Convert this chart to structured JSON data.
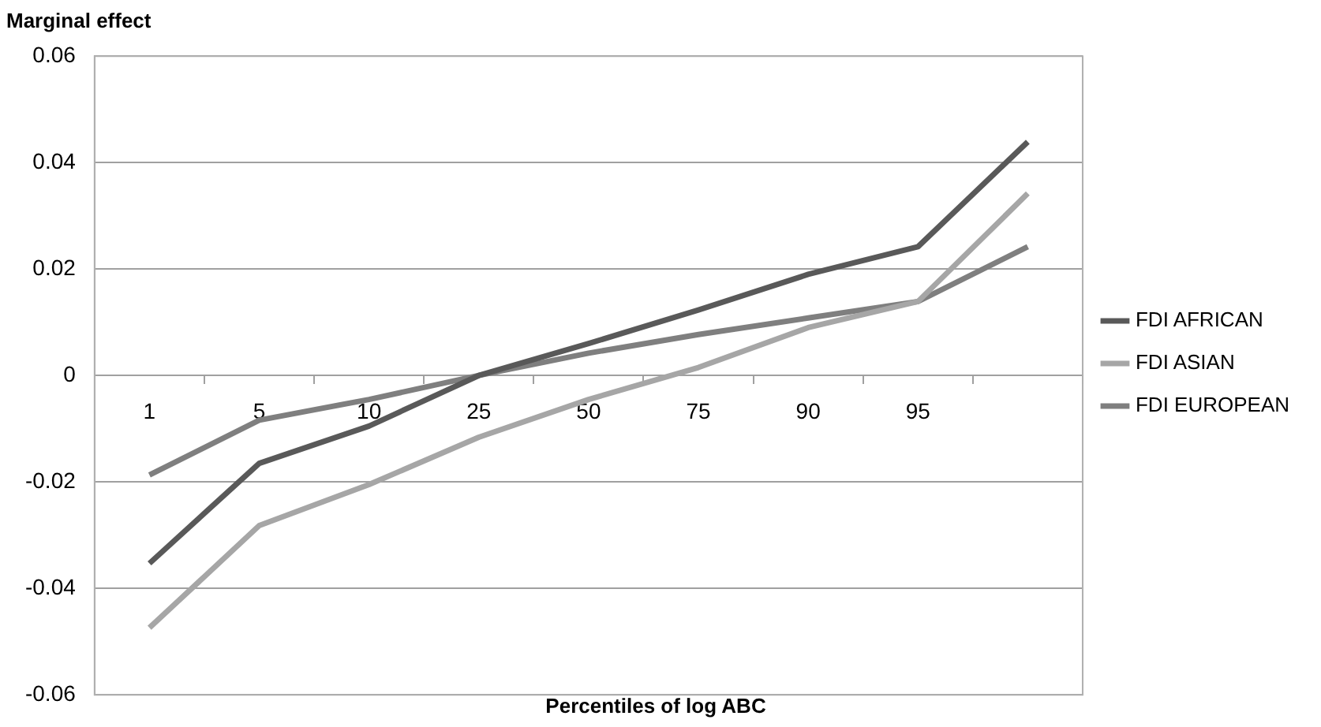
{
  "chart_data": {
    "type": "line",
    "title": "Marginal effect",
    "xlabel": "Percentiles of log ABC",
    "categories": [
      "1",
      "5",
      "10",
      "25",
      "50",
      "75",
      "90",
      "95",
      null
    ],
    "series": [
      {
        "name": "FDI AFRICAN",
        "color": "#595959",
        "values": [
          -0.0353,
          -0.0165,
          -0.0095,
          0.0,
          0.006,
          0.0123,
          0.019,
          0.0242,
          0.0439
        ]
      },
      {
        "name": "FDI ASIAN",
        "color": "#a6a6a6",
        "values": [
          -0.0474,
          -0.0282,
          -0.0205,
          -0.0116,
          -0.0045,
          0.0015,
          0.009,
          0.0139,
          0.0342
        ]
      },
      {
        "name": "FDI EUROPEAN",
        "color": "#7f7f7f",
        "values": [
          -0.0187,
          -0.0084,
          -0.0045,
          0.0,
          0.0042,
          0.0077,
          0.0108,
          0.0139,
          0.0242
        ]
      }
    ],
    "ylim": [
      -0.06,
      0.06
    ],
    "yticks": [
      -0.06,
      -0.04,
      -0.02,
      0,
      0.02,
      0.04,
      0.06
    ],
    "grid": "y",
    "legend": "right",
    "marker": "none",
    "line_style": "solid"
  }
}
